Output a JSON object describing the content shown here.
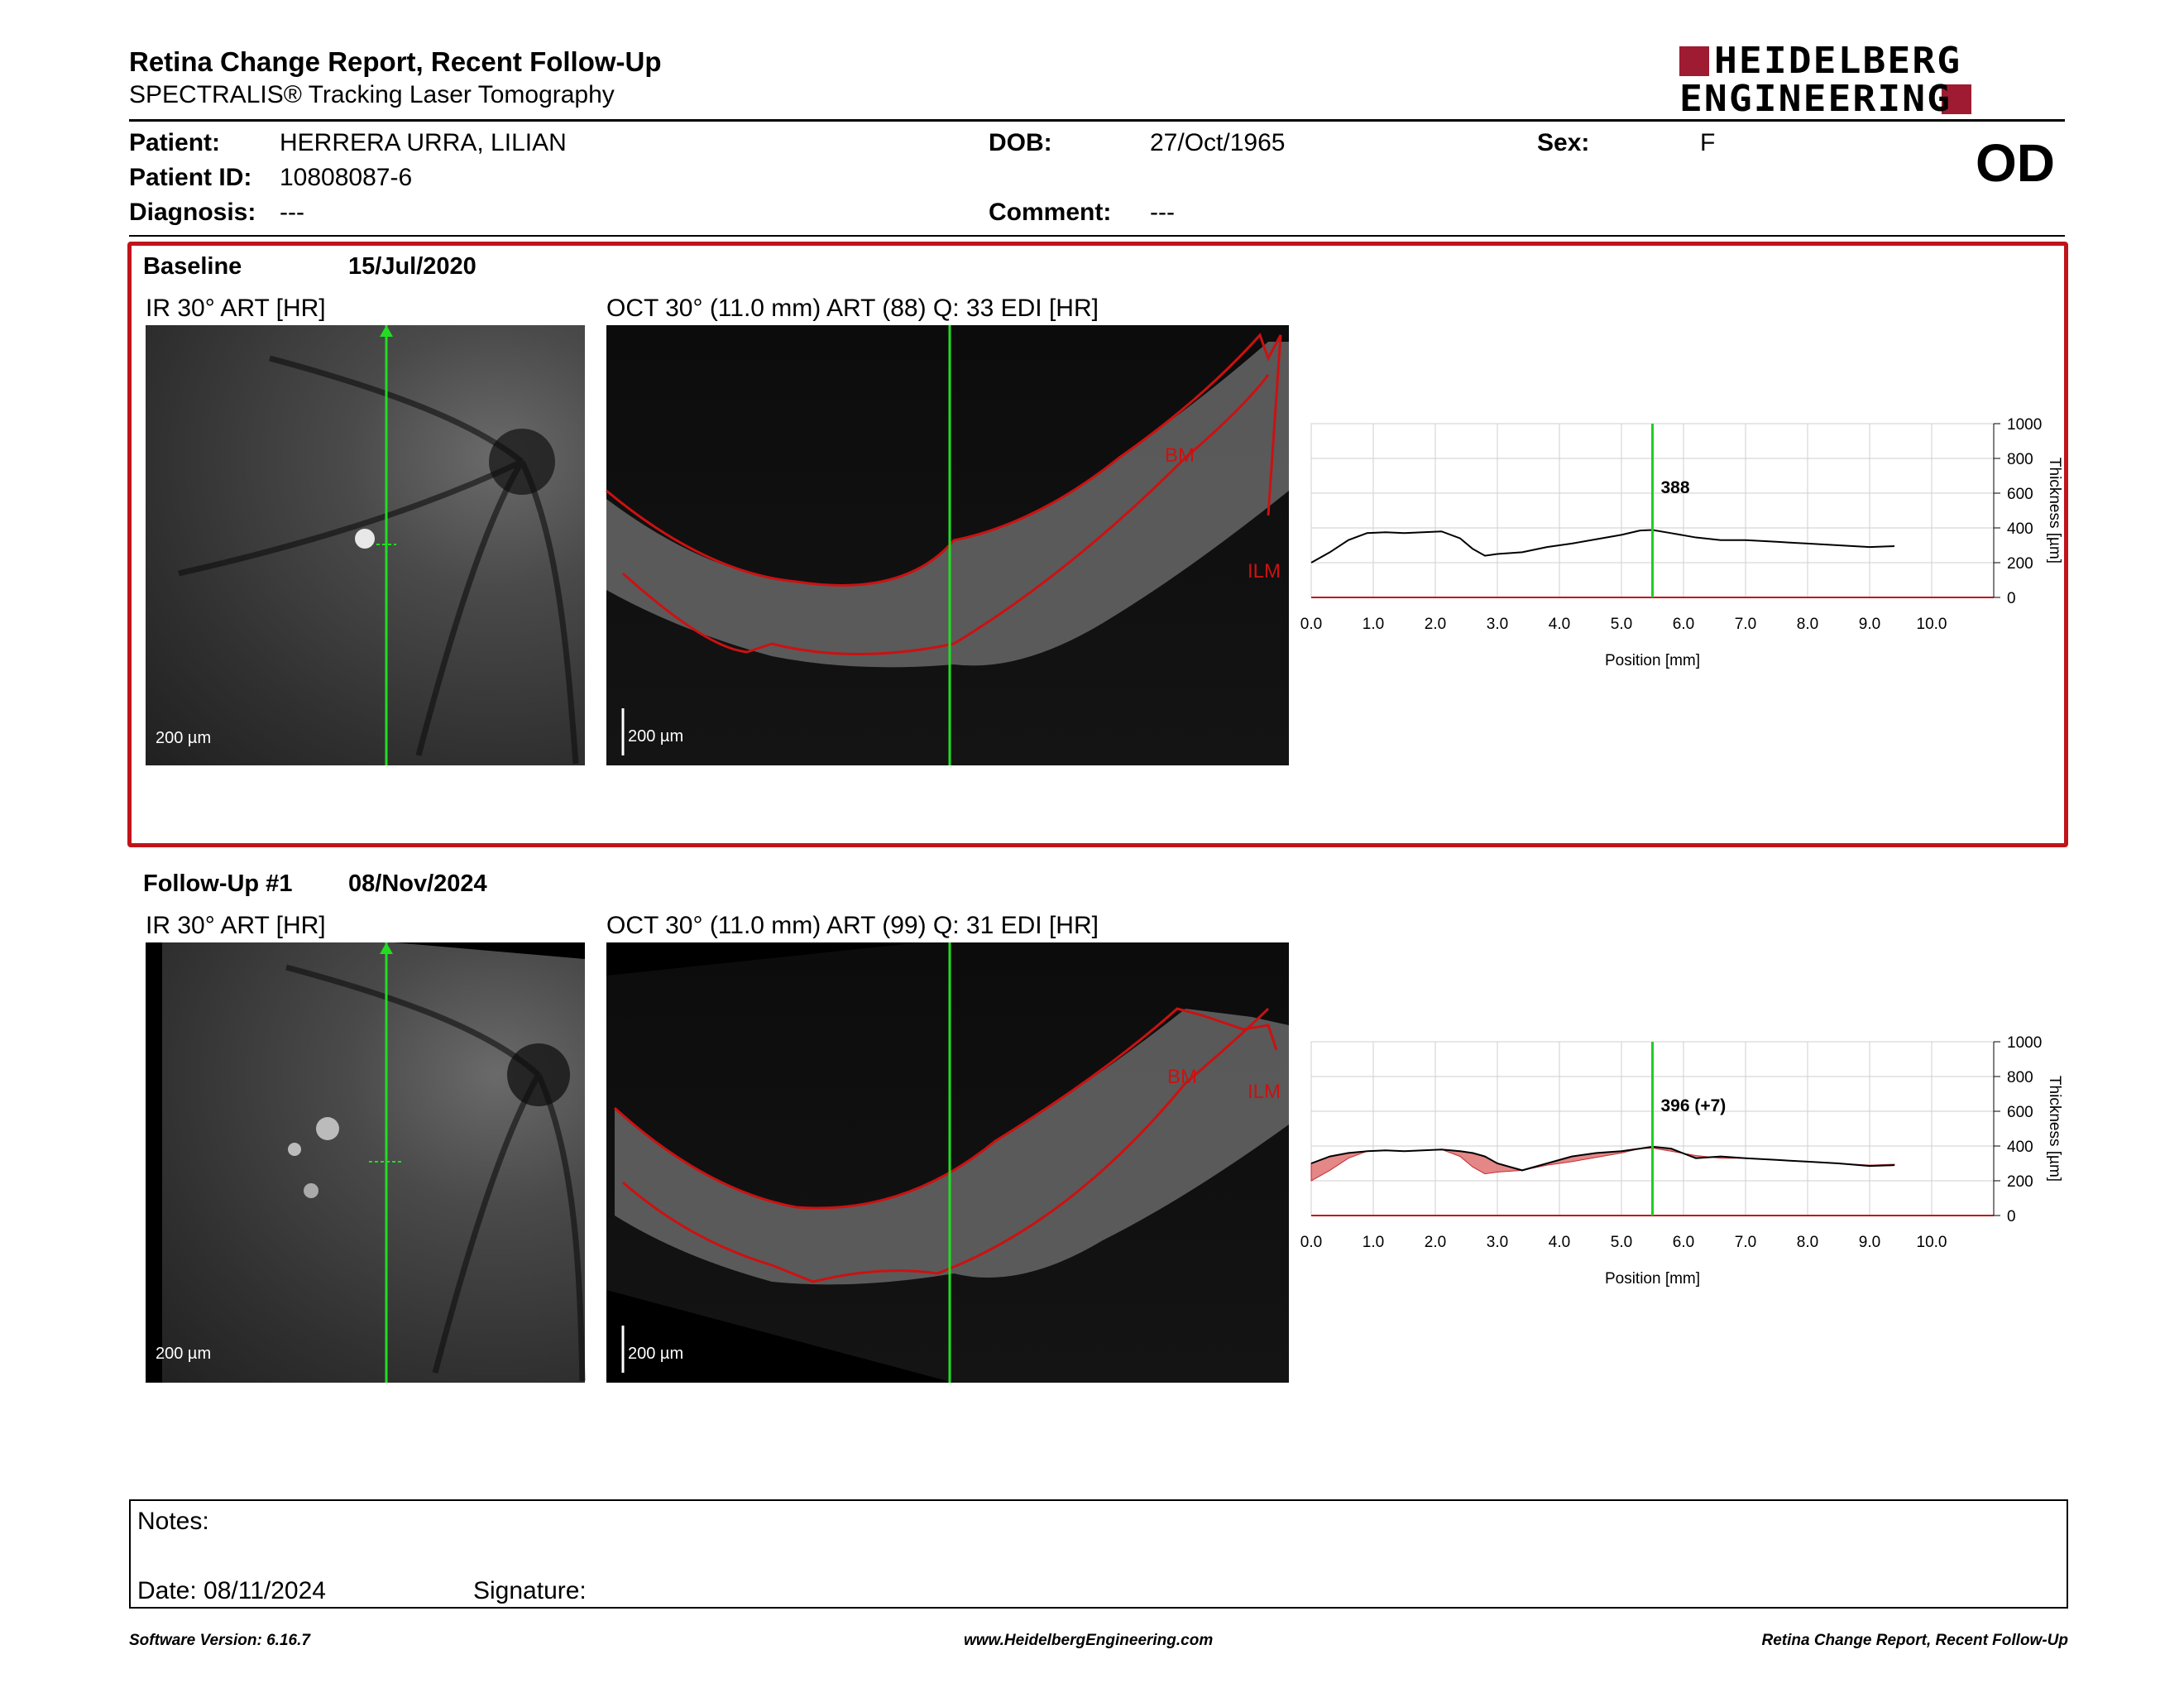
{
  "header": {
    "title": "Retina Change Report, Recent Follow-Up",
    "subtitle": "SPECTRALIS® Tracking Laser Tomography",
    "logo_line1": "HEIDELBERG",
    "logo_line2": "ENGINEERING",
    "brand_color": "#9e1b32"
  },
  "patient": {
    "patient_label": "Patient:",
    "patient_value": "HERRERA URRA, LILIAN",
    "id_label": "Patient ID:",
    "id_value": "10808087-6",
    "diagnosis_label": "Diagnosis:",
    "diagnosis_value": "---",
    "dob_label": "DOB:",
    "dob_value": "27/Oct/1965",
    "comment_label": "Comment:",
    "comment_value": "---",
    "sex_label": "Sex:",
    "sex_value": "F",
    "eye": "OD"
  },
  "baseline": {
    "label": "Baseline",
    "date": "15/Jul/2020",
    "ir_caption": "IR 30° ART [HR]",
    "oct_caption": "OCT 30° (11.0 mm) ART (88) Q: 33 EDI [HR]",
    "ir_scale": "200 µm",
    "oct_scale": "200 µm",
    "bm_label": "BM",
    "ilm_label": "ILM"
  },
  "followup": {
    "label": "Follow-Up #1",
    "date": "08/Nov/2024",
    "ir_caption": "IR 30° ART [HR]",
    "oct_caption": "OCT 30° (11.0 mm) ART (99) Q: 31 EDI [HR]",
    "ir_scale": "200 µm",
    "oct_scale": "200 µm",
    "bm_label": "BM",
    "ilm_label": "ILM"
  },
  "chart_data": [
    {
      "type": "line",
      "xlabel": "Position [mm]",
      "ylabel": "Thickness [µm]",
      "xlim": [
        0,
        11
      ],
      "ylim": [
        0,
        1000
      ],
      "x_ticks": [
        "0.0",
        "1.0",
        "2.0",
        "3.0",
        "4.0",
        "5.0",
        "6.0",
        "7.0",
        "8.0",
        "9.0",
        "10.0"
      ],
      "y_ticks": [
        "0",
        "200",
        "400",
        "600",
        "800",
        "1000"
      ],
      "marker_x": 5.5,
      "marker_label": "388",
      "series": [
        {
          "values_x": [
            0.0,
            0.3,
            0.6,
            0.9,
            1.2,
            1.5,
            1.8,
            2.1,
            2.4,
            2.6,
            2.8,
            3.0,
            3.4,
            3.8,
            4.2,
            4.6,
            5.0,
            5.3,
            5.5,
            5.8,
            6.2,
            6.6,
            7.0,
            7.5,
            8.0,
            8.5,
            9.0,
            9.4
          ],
          "values_y": [
            200,
            260,
            330,
            370,
            375,
            370,
            375,
            380,
            340,
            280,
            240,
            250,
            260,
            290,
            310,
            335,
            360,
            385,
            388,
            370,
            345,
            330,
            330,
            320,
            310,
            300,
            290,
            295
          ]
        }
      ],
      "marker_color": "#22cc22",
      "line_color": "#000000"
    },
    {
      "type": "area",
      "xlabel": "Position [mm]",
      "ylabel": "Thickness [µm]",
      "xlim": [
        0,
        11
      ],
      "ylim": [
        0,
        1000
      ],
      "x_ticks": [
        "0.0",
        "1.0",
        "2.0",
        "3.0",
        "4.0",
        "5.0",
        "6.0",
        "7.0",
        "8.0",
        "9.0",
        "10.0"
      ],
      "y_ticks": [
        "0",
        "200",
        "400",
        "600",
        "800",
        "1000"
      ],
      "marker_x": 5.5,
      "marker_label": "396 (+7)",
      "series": [
        {
          "values_x": [
            0.0,
            0.3,
            0.6,
            0.9,
            1.2,
            1.5,
            1.8,
            2.1,
            2.4,
            2.6,
            2.8,
            3.0,
            3.4,
            3.8,
            4.2,
            4.6,
            5.0,
            5.3,
            5.5,
            5.8,
            6.2,
            6.6,
            7.0,
            7.5,
            8.0,
            8.5,
            9.0,
            9.4
          ],
          "values_y": [
            300,
            340,
            360,
            370,
            375,
            370,
            375,
            380,
            370,
            360,
            340,
            300,
            260,
            300,
            340,
            360,
            370,
            385,
            396,
            385,
            330,
            340,
            330,
            320,
            310,
            300,
            285,
            290
          ]
        },
        {
          "values_x": [
            0.0,
            0.3,
            0.6,
            0.9,
            1.2,
            1.5,
            1.8,
            2.1,
            2.4,
            2.6,
            2.8,
            3.0,
            3.4,
            3.8,
            4.2,
            4.6,
            5.0,
            5.3,
            5.5,
            5.8,
            6.2,
            6.6,
            7.0,
            7.5,
            8.0,
            8.5,
            9.0,
            9.4
          ],
          "values_y": [
            200,
            260,
            330,
            370,
            375,
            370,
            375,
            380,
            340,
            280,
            240,
            250,
            260,
            290,
            310,
            335,
            360,
            385,
            388,
            370,
            345,
            330,
            330,
            320,
            310,
            300,
            290,
            295
          ]
        }
      ],
      "fill_color": "#e07b7b",
      "marker_color": "#22cc22",
      "line_color": "#000000"
    }
  ],
  "notes": {
    "notes_label": "Notes:",
    "date_label": "Date: 08/11/2024",
    "signature_label": "Signature:"
  },
  "footer": {
    "left": "Software Version: 6.16.7",
    "center": "www.HeidelbergEngineering.com",
    "right": "Retina Change Report, Recent Follow-Up"
  }
}
